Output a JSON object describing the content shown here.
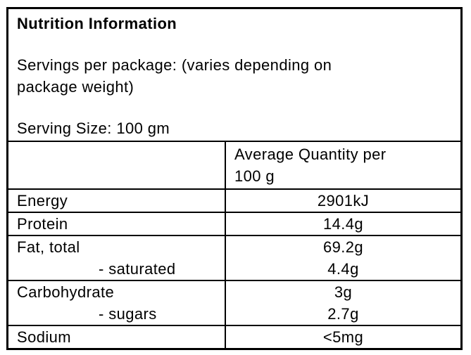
{
  "label": {
    "title": "Nutrition Information",
    "servings_per_package": "Servings per package: (varies depending on\npackage weight)",
    "serving_size": "Serving Size: 100 gm",
    "table": {
      "value_column_header": "Average Quantity per\n100 g",
      "groups": [
        {
          "rows": [
            {
              "name": "Energy",
              "value": "2901kJ"
            }
          ]
        },
        {
          "rows": [
            {
              "name": "Protein",
              "value": "14.4g"
            }
          ]
        },
        {
          "rows": [
            {
              "name": "Fat, total",
              "value": "69.2g"
            },
            {
              "name": "- saturated",
              "value": "4.4g"
            }
          ]
        },
        {
          "rows": [
            {
              "name": "Carbohydrate",
              "value": "3g"
            },
            {
              "name": "- sugars",
              "value": "2.7g"
            }
          ]
        },
        {
          "rows": [
            {
              "name": "Sodium",
              "value": "<5mg"
            }
          ]
        }
      ]
    },
    "colors": {
      "border": "#000000",
      "text": "#000000",
      "background": "#ffffff"
    }
  }
}
